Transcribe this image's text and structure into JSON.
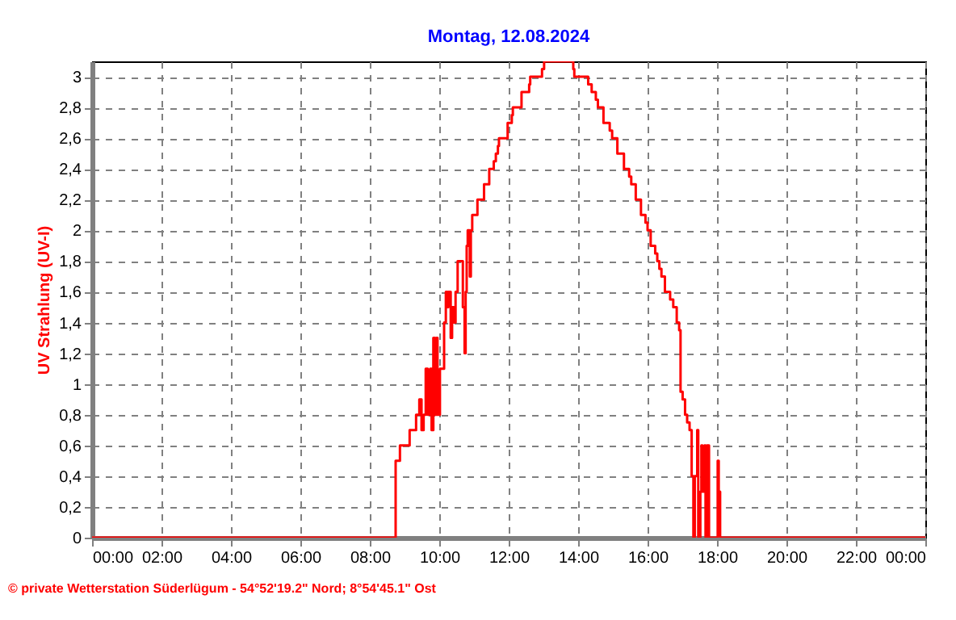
{
  "chart_data": {
    "type": "step",
    "title": "Montag, 12.08.2024",
    "ylabel": "UV Strahlung  (UV-I)",
    "annotations": [
      "© private Wetterstation Süderlügum - 54°52'19.2\" Nord; 8°54'45.1\" Ost"
    ],
    "x": [
      0,
      8.744,
      8.868,
      9.147,
      9.333,
      9.426,
      9.49,
      9.55,
      9.61,
      9.67,
      9.74,
      9.78,
      9.83,
      9.88,
      9.92,
      9.95,
      10.02,
      10.08,
      10.14,
      10.19,
      10.23,
      10.26,
      10.33,
      10.37,
      10.42,
      10.47,
      10.53,
      10.68,
      10.73,
      10.76,
      10.79,
      10.82,
      10.88,
      10.91,
      10.95,
      11.1,
      11.29,
      11.44,
      11.57,
      11.63,
      11.69,
      11.72,
      11.97,
      12.09,
      12.12,
      12.37,
      12.59,
      12.62,
      12.96,
      13.02,
      13.86,
      13.89,
      14.29,
      14.39,
      14.51,
      14.57,
      14.73,
      14.91,
      14.98,
      15.13,
      15.32,
      15.47,
      15.53,
      15.66,
      15.81,
      15.94,
      16.0,
      16.09,
      16.22,
      16.28,
      16.34,
      16.4,
      16.5,
      16.65,
      16.74,
      16.84,
      16.91,
      16.95,
      17.01,
      17.08,
      17.14,
      17.21,
      17.27,
      17.32,
      17.36,
      17.43,
      17.46,
      17.52,
      17.55,
      17.58,
      17.64,
      17.67,
      17.71,
      17.77,
      18.02,
      18.05,
      18.09,
      24
    ],
    "series": [
      {
        "color": "#ff0000",
        "values": [
          0,
          0.5,
          0.6,
          0.7,
          0.8,
          0.9,
          0.7,
          0.8,
          1.1,
          0.8,
          1.1,
          0.7,
          1.3,
          0.8,
          1.3,
          0.8,
          1.1,
          1.1,
          1.4,
          1.6,
          1.5,
          1.6,
          1.3,
          1.5,
          1.4,
          1.6,
          1.8,
          1.5,
          1.2,
          1.6,
          1.9,
          2.0,
          1.7,
          2.0,
          2.1,
          2.2,
          2.3,
          2.4,
          2.45,
          2.5,
          2.55,
          2.6,
          2.7,
          2.75,
          2.8,
          2.9,
          2.95,
          3.0,
          3.05,
          3.1,
          3.05,
          3.0,
          2.95,
          2.9,
          2.85,
          2.8,
          2.7,
          2.65,
          2.6,
          2.5,
          2.4,
          2.35,
          2.3,
          2.2,
          2.1,
          2.05,
          2.0,
          1.9,
          1.85,
          1.8,
          1.75,
          1.7,
          1.6,
          1.55,
          1.5,
          1.4,
          1.35,
          0.95,
          0.9,
          0.8,
          0.75,
          0.7,
          0.4,
          0,
          0.4,
          0.7,
          0,
          0.3,
          0.6,
          0.3,
          0.6,
          0,
          0.6,
          0,
          0.5,
          0.3,
          0,
          0
        ]
      }
    ],
    "xlim": [
      0,
      24
    ],
    "xticks": [
      {
        "value": 0,
        "label": "00:00"
      },
      {
        "value": 2,
        "label": "02:00"
      },
      {
        "value": 4,
        "label": "04:00"
      },
      {
        "value": 6,
        "label": "06:00"
      },
      {
        "value": 8,
        "label": "08:00"
      },
      {
        "value": 10,
        "label": "10:00"
      },
      {
        "value": 12,
        "label": "12:00"
      },
      {
        "value": 14,
        "label": "14:00"
      },
      {
        "value": 16,
        "label": "16:00"
      },
      {
        "value": 18,
        "label": "18:00"
      },
      {
        "value": 20,
        "label": "20:00"
      },
      {
        "value": 22,
        "label": "22:00"
      },
      {
        "value": 24,
        "label": "00:00"
      }
    ],
    "ylim": [
      0,
      3.1
    ],
    "yticks": [
      0,
      {
        "value": 0.2,
        "label": "0,2"
      },
      {
        "value": 0.4,
        "label": "0,4"
      },
      {
        "value": 0.6,
        "label": "0,6"
      },
      {
        "value": 0.8,
        "label": "0,8"
      },
      1,
      {
        "value": 1.2,
        "label": "1,2"
      },
      {
        "value": 1.4,
        "label": "1,4"
      },
      {
        "value": 1.6,
        "label": "1,6"
      },
      {
        "value": 1.8,
        "label": "1,8"
      },
      2,
      {
        "value": 2.2,
        "label": "2,2"
      },
      {
        "value": 2.4,
        "label": "2,4"
      },
      {
        "value": 2.6,
        "label": "2,6"
      },
      {
        "value": 2.8,
        "label": "2,8"
      },
      3
    ],
    "grid": true,
    "line_style": "solid"
  }
}
